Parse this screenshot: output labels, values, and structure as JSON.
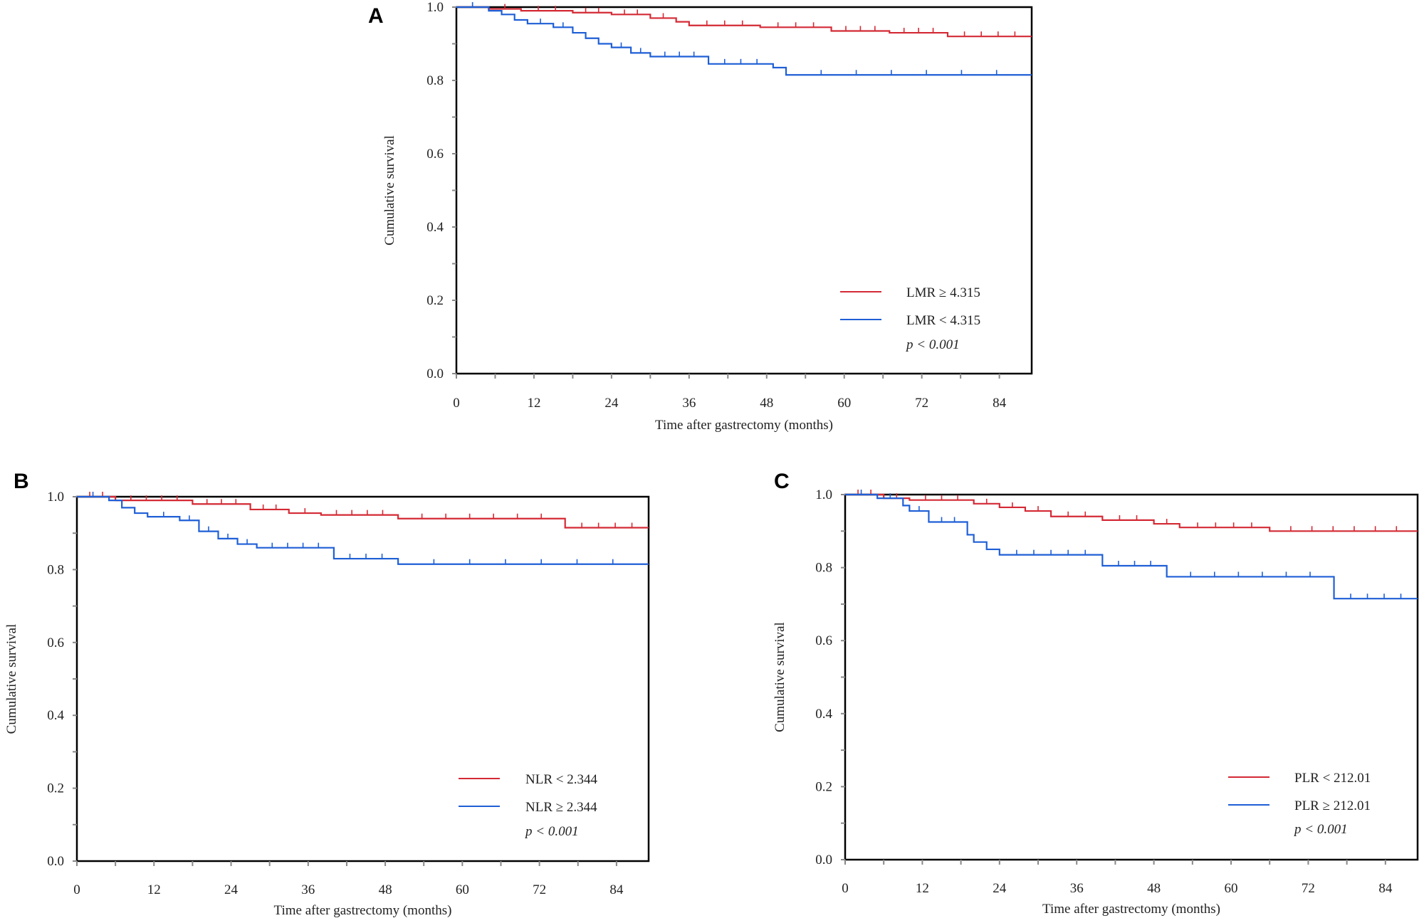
{
  "chart_data": [
    {
      "panel": "A",
      "type": "line",
      "step": true,
      "xlabel": "Time after gastrectomy (months)",
      "ylabel": "Cumulative survival",
      "xlim": [
        0,
        89
      ],
      "ylim": [
        0,
        1
      ],
      "xticks": [
        0,
        12,
        24,
        36,
        48,
        60,
        72,
        84
      ],
      "yticks": [
        "0.0",
        "0.2",
        "0.4",
        "0.6",
        "0.8",
        "1.0"
      ],
      "grid": false,
      "legend_position": "bottom-right",
      "annotation": "p < 0.001",
      "series": [
        {
          "name": "LMR ≥ 4.315",
          "color": "#d42a35",
          "points": [
            [
              0,
              1.0
            ],
            [
              5,
              0.995
            ],
            [
              10,
              0.99
            ],
            [
              18,
              0.985
            ],
            [
              24,
              0.98
            ],
            [
              30,
              0.97
            ],
            [
              34,
              0.96
            ],
            [
              36,
              0.95
            ],
            [
              47,
              0.945
            ],
            [
              58,
              0.935
            ],
            [
              67,
              0.93
            ],
            [
              76,
              0.92
            ],
            [
              89,
              0.92
            ]
          ]
        },
        {
          "name": "LMR < 4.315",
          "color": "#1f5fd6",
          "points": [
            [
              0,
              1.0
            ],
            [
              5,
              0.99
            ],
            [
              7,
              0.98
            ],
            [
              9,
              0.965
            ],
            [
              11,
              0.955
            ],
            [
              15,
              0.945
            ],
            [
              18,
              0.93
            ],
            [
              20,
              0.915
            ],
            [
              22,
              0.9
            ],
            [
              24,
              0.89
            ],
            [
              27,
              0.875
            ],
            [
              30,
              0.865
            ],
            [
              39,
              0.845
            ],
            [
              49,
              0.835
            ],
            [
              51,
              0.815
            ],
            [
              89,
              0.815
            ]
          ]
        }
      ]
    },
    {
      "panel": "B",
      "type": "line",
      "step": true,
      "xlabel": "Time after gastrectomy (months)",
      "ylabel": "Cumulative survival",
      "xlim": [
        0,
        89
      ],
      "ylim": [
        0,
        1
      ],
      "xticks": [
        0,
        12,
        24,
        36,
        48,
        60,
        72,
        84
      ],
      "yticks": [
        "0.0",
        "0.2",
        "0.4",
        "0.6",
        "0.8",
        "1.0"
      ],
      "grid": false,
      "legend_position": "bottom-right",
      "annotation": "p < 0.001",
      "series": [
        {
          "name": "NLR < 2.344",
          "color": "#d42a35",
          "points": [
            [
              0,
              1.0
            ],
            [
              6,
              0.99
            ],
            [
              18,
              0.98
            ],
            [
              27,
              0.965
            ],
            [
              33,
              0.955
            ],
            [
              38,
              0.95
            ],
            [
              50,
              0.94
            ],
            [
              76,
              0.915
            ],
            [
              89,
              0.915
            ]
          ]
        },
        {
          "name": "NLR ≥ 2.344",
          "color": "#1f5fd6",
          "points": [
            [
              0,
              1.0
            ],
            [
              5,
              0.99
            ],
            [
              7,
              0.97
            ],
            [
              9,
              0.955
            ],
            [
              11,
              0.945
            ],
            [
              16,
              0.935
            ],
            [
              19,
              0.905
            ],
            [
              22,
              0.885
            ],
            [
              25,
              0.87
            ],
            [
              28,
              0.86
            ],
            [
              40,
              0.83
            ],
            [
              50,
              0.815
            ],
            [
              89,
              0.815
            ]
          ]
        }
      ]
    },
    {
      "panel": "C",
      "type": "line",
      "step": true,
      "xlabel": "Time after gastrectomy (months)",
      "ylabel": "Cumulative survival",
      "xlim": [
        0,
        89
      ],
      "ylim": [
        0,
        1
      ],
      "xticks": [
        0,
        12,
        24,
        36,
        48,
        60,
        72,
        84
      ],
      "yticks": [
        "0.0",
        "0.2",
        "0.4",
        "0.6",
        "0.8",
        "1.0"
      ],
      "grid": false,
      "legend_position": "bottom-right",
      "annotation": "p < 0.001",
      "series": [
        {
          "name": "PLR < 212.01",
          "color": "#d42a35",
          "points": [
            [
              0,
              1.0
            ],
            [
              6,
              0.99
            ],
            [
              10,
              0.985
            ],
            [
              20,
              0.975
            ],
            [
              24,
              0.965
            ],
            [
              28,
              0.955
            ],
            [
              32,
              0.94
            ],
            [
              40,
              0.93
            ],
            [
              48,
              0.92
            ],
            [
              52,
              0.91
            ],
            [
              66,
              0.9
            ],
            [
              89,
              0.9
            ]
          ]
        },
        {
          "name": "PLR ≥ 212.01",
          "color": "#1f5fd6",
          "points": [
            [
              0,
              1.0
            ],
            [
              5,
              0.99
            ],
            [
              9,
              0.97
            ],
            [
              10,
              0.955
            ],
            [
              13,
              0.925
            ],
            [
              19,
              0.89
            ],
            [
              20,
              0.87
            ],
            [
              22,
              0.85
            ],
            [
              24,
              0.835
            ],
            [
              40,
              0.805
            ],
            [
              50,
              0.775
            ],
            [
              76,
              0.715
            ],
            [
              89,
              0.715
            ]
          ]
        }
      ]
    }
  ]
}
